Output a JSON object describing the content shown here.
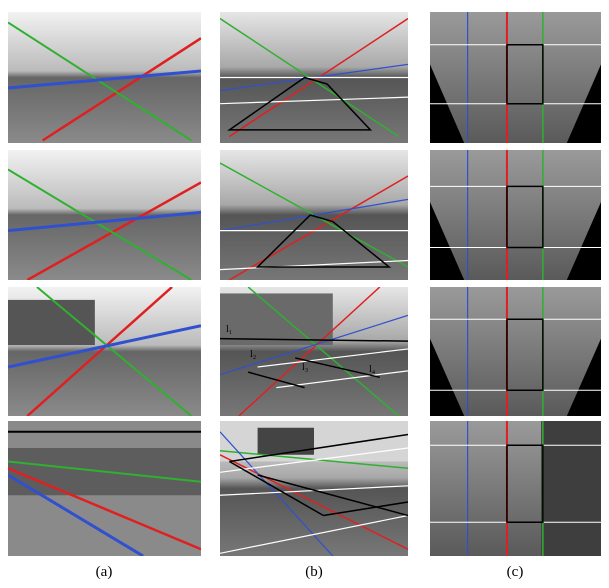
{
  "figure": {
    "panel_labels": [
      "(a)",
      "(b)",
      "(c)"
    ],
    "line_labels": [
      "l₁",
      "l₂",
      "l₃",
      "l₄"
    ]
  }
}
